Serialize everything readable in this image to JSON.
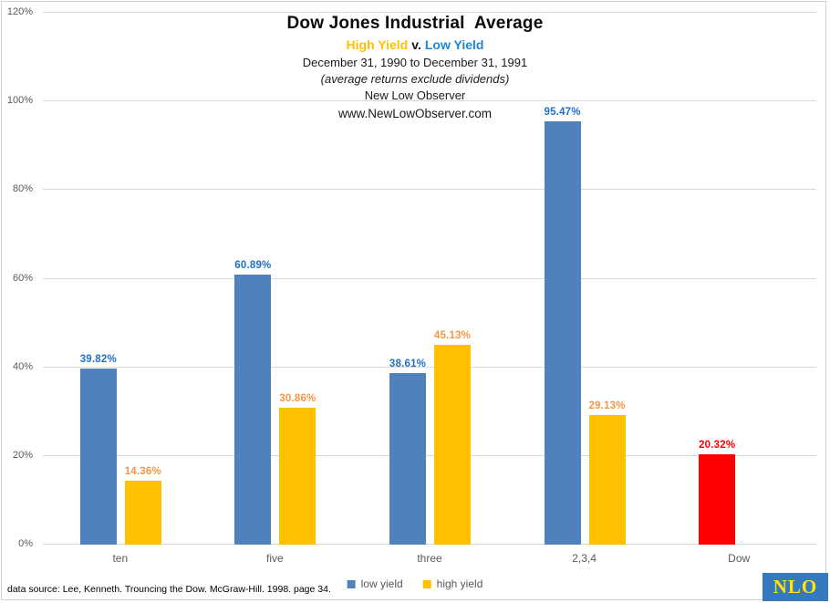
{
  "header": {
    "title": "Dow Jones Industrial  Average",
    "subtitle": {
      "high": "High Yield",
      "vs": "v.",
      "low": "Low Yield"
    },
    "date_range": "December 31, 1990 to December 31, 1991",
    "note": "(average returns exclude dividends)",
    "org": "New Low Observer",
    "url": "www.NewLowObserver.com"
  },
  "chart_data": {
    "type": "bar",
    "title": "Dow Jones Industrial Average",
    "subtitle": "High Yield v. Low Yield",
    "xlabel": "",
    "ylabel": "",
    "ylim": [
      0,
      120
    ],
    "grid": true,
    "legend_position": "bottom",
    "yticks": [
      {
        "value": 0,
        "label": "0%"
      },
      {
        "value": 20,
        "label": "20%"
      },
      {
        "value": 40,
        "label": "40%"
      },
      {
        "value": 60,
        "label": "60%"
      },
      {
        "value": 80,
        "label": "80%"
      },
      {
        "value": 100,
        "label": "100%"
      },
      {
        "value": 120,
        "label": "120%"
      }
    ],
    "categories": [
      "ten",
      "five",
      "three",
      "2,3,4",
      "Dow"
    ],
    "groups": [
      {
        "category": "ten",
        "bars": [
          {
            "series": "low yield",
            "value": 39.82,
            "label": "39.82%",
            "color": "#4f81bd",
            "label_color": "#1f6fc5",
            "slot": 0
          },
          {
            "series": "high yield",
            "value": 14.36,
            "label": "14.36%",
            "color": "#ffc000",
            "label_color": "#f79646",
            "slot": 1
          }
        ]
      },
      {
        "category": "five",
        "bars": [
          {
            "series": "low yield",
            "value": 60.89,
            "label": "60.89%",
            "color": "#4f81bd",
            "label_color": "#1f6fc5",
            "slot": 0
          },
          {
            "series": "high yield",
            "value": 30.86,
            "label": "30.86%",
            "color": "#ffc000",
            "label_color": "#f79646",
            "slot": 1
          }
        ]
      },
      {
        "category": "three",
        "bars": [
          {
            "series": "low yield",
            "value": 38.61,
            "label": "38.61%",
            "color": "#4f81bd",
            "label_color": "#1f6fc5",
            "slot": 0
          },
          {
            "series": "high yield",
            "value": 45.13,
            "label": "45.13%",
            "color": "#ffc000",
            "label_color": "#f79646",
            "slot": 1
          }
        ]
      },
      {
        "category": "2,3,4",
        "bars": [
          {
            "series": "low yield",
            "value": 95.47,
            "label": "95.47%",
            "color": "#4f81bd",
            "label_color": "#1f6fc5",
            "slot": 0
          },
          {
            "series": "high yield",
            "value": 29.13,
            "label": "29.13%",
            "color": "#ffc000",
            "label_color": "#f79646",
            "slot": 1
          }
        ]
      },
      {
        "category": "Dow",
        "bars": [
          {
            "series": "Dow",
            "value": 20.32,
            "label": "20.32%",
            "color": "#ff0000",
            "label_color": "#ff0000",
            "slot": 0
          }
        ]
      }
    ],
    "legend": [
      {
        "label": "low yield",
        "color": "#4f81bd"
      },
      {
        "label": "high yield",
        "color": "#ffc000"
      }
    ]
  },
  "footer": {
    "source": "data source: Lee, Kenneth. Trouncing the Dow. McGraw-Hill. 1998. page 34.",
    "logo": "NLO"
  },
  "colors": {
    "low_yield_bar": "#4f81bd",
    "high_yield_bar": "#ffc000",
    "dow_bar": "#ff0000",
    "low_label": "#1f6fc5",
    "high_label": "#f79646",
    "subtitle_high": "#ffc000",
    "subtitle_low": "#1e86d2",
    "gridline": "#d9d9d9",
    "axis_text": "#595959",
    "logo_bg": "#3779bf",
    "logo_text": "#ffe600"
  }
}
